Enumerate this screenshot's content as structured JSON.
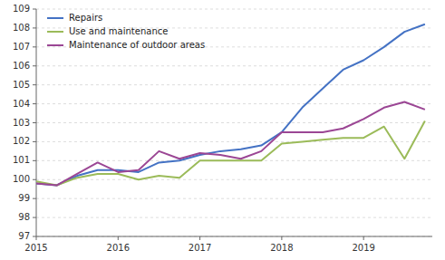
{
  "chart_data": {
    "type": "line",
    "x": [
      2015.0,
      2015.25,
      2015.5,
      2015.75,
      2016.0,
      2016.25,
      2016.5,
      2016.75,
      2017.0,
      2017.25,
      2017.5,
      2017.75,
      2018.0,
      2018.25,
      2018.5,
      2018.75,
      2019.0,
      2019.25,
      2019.5,
      2019.75
    ],
    "series": [
      {
        "name": "Repairs",
        "color": "#4472c4",
        "values": [
          99.8,
          99.7,
          100.2,
          100.5,
          100.5,
          100.4,
          100.9,
          101.0,
          101.3,
          101.5,
          101.6,
          101.8,
          102.5,
          103.8,
          104.8,
          105.8,
          106.3,
          107.0,
          107.8,
          108.2
        ]
      },
      {
        "name": "Use and maintenance",
        "color": "#9bbb59",
        "values": [
          99.9,
          99.7,
          100.1,
          100.3,
          100.3,
          100.0,
          100.2,
          100.1,
          101.0,
          101.0,
          101.0,
          101.0,
          101.9,
          102.0,
          102.1,
          102.2,
          102.2,
          102.8,
          101.1,
          103.1
        ]
      },
      {
        "name": "Maintenance of outdoor areas",
        "color": "#9b4694",
        "values": [
          99.8,
          99.7,
          100.3,
          100.9,
          100.4,
          100.5,
          101.5,
          101.1,
          101.4,
          101.3,
          101.1,
          101.5,
          102.5,
          102.5,
          102.5,
          102.7,
          103.2,
          103.8,
          104.1,
          103.7
        ]
      }
    ],
    "xlim": [
      2015.0,
      2019.84
    ],
    "xticks": [
      2015,
      2016,
      2017,
      2018,
      2019
    ],
    "ylim": [
      97,
      109
    ],
    "yticks": [
      97,
      98,
      99,
      100,
      101,
      102,
      103,
      104,
      105,
      106,
      107,
      108,
      109
    ],
    "grid": true,
    "legend": "upper left"
  }
}
